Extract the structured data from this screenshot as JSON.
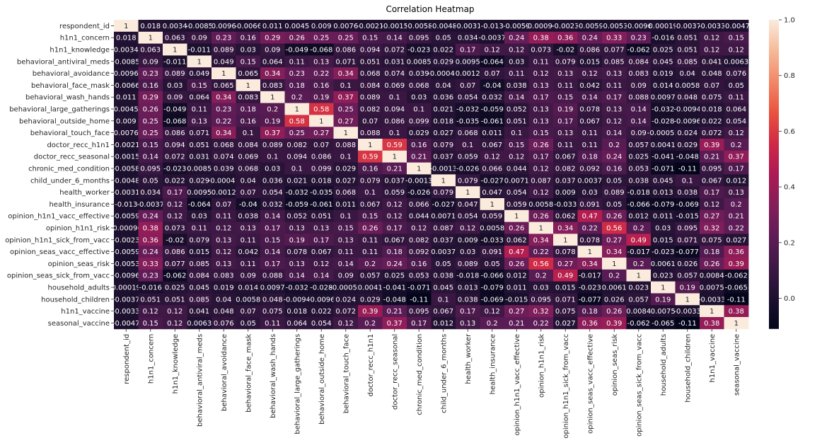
{
  "chart_data": {
    "type": "heatmap",
    "title": "Correlation Heatmap",
    "variables": [
      "respondent_id",
      "h1n1_concern",
      "h1n1_knowledge",
      "behavioral_antiviral_meds",
      "behavioral_avoidance",
      "behavioral_face_mask",
      "behavioral_wash_hands",
      "behavioral_large_gatherings",
      "behavioral_outside_home",
      "behavioral_touch_face",
      "doctor_recc_h1n1",
      "doctor_recc_seasonal",
      "chronic_med_condition",
      "child_under_6_months",
      "health_worker",
      "health_insurance",
      "opinion_h1n1_vacc_effective",
      "opinion_h1n1_risk",
      "opinion_h1n1_sick_from_vacc",
      "opinion_seas_vacc_effective",
      "opinion_seas_risk",
      "opinion_seas_sick_from_vacc",
      "household_adults",
      "household_children",
      "h1n1_vaccine",
      "seasonal_vaccine"
    ],
    "values": [
      [
        "1",
        "0.018",
        "0.0034",
        "-0.0085",
        "0.0096",
        "-0.0066",
        "0.011",
        "0.0045",
        "0.009",
        "0.0076",
        "-0.0021",
        "-0.0015",
        "-0.0058",
        "-0.0048",
        "-0.0031",
        "-0.013",
        "-0.0059",
        "-0.00096",
        "-0.0023",
        "-0.0059",
        "-0.0053",
        "-0.0096",
        "0.00019",
        "-0.0037",
        "-0.0033",
        "-0.0047"
      ],
      [
        "0.018",
        "1",
        "0.063",
        "0.09",
        "0.23",
        "0.16",
        "0.29",
        "0.26",
        "0.25",
        "0.25",
        "0.15",
        "0.14",
        "0.095",
        "0.05",
        "0.034",
        "-0.0037",
        "0.24",
        "0.38",
        "0.36",
        "0.24",
        "0.33",
        "0.23",
        "-0.016",
        "0.051",
        "0.12",
        "0.15"
      ],
      [
        "0.0034",
        "0.063",
        "1",
        "-0.011",
        "0.089",
        "0.03",
        "0.09",
        "-0.049",
        "-0.068",
        "0.086",
        "0.094",
        "0.072",
        "-0.023",
        "0.022",
        "0.17",
        "0.12",
        "0.12",
        "0.073",
        "-0.02",
        "0.086",
        "0.077",
        "-0.062",
        "0.025",
        "0.051",
        "0.12",
        "0.12"
      ],
      [
        "-0.0085",
        "0.09",
        "-0.011",
        "1",
        "0.049",
        "0.15",
        "0.064",
        "0.11",
        "0.13",
        "0.071",
        "0.051",
        "0.031",
        "0.0085",
        "0.029",
        "0.0095",
        "-0.064",
        "0.03",
        "0.11",
        "0.079",
        "0.015",
        "0.085",
        "0.084",
        "0.045",
        "0.085",
        "0.041",
        "0.0063"
      ],
      [
        "0.0096",
        "0.23",
        "0.089",
        "0.049",
        "1",
        "0.065",
        "0.34",
        "0.23",
        "0.22",
        "0.34",
        "0.068",
        "0.074",
        "0.039",
        "-0.00041",
        "0.0012",
        "0.07",
        "0.11",
        "0.12",
        "0.13",
        "0.12",
        "0.13",
        "0.083",
        "0.019",
        "0.04",
        "0.048",
        "0.076"
      ],
      [
        "-0.0066",
        "0.16",
        "0.03",
        "0.15",
        "0.065",
        "1",
        "0.083",
        "0.18",
        "0.16",
        "0.1",
        "0.084",
        "0.069",
        "0.068",
        "0.04",
        "0.07",
        "-0.04",
        "0.038",
        "0.13",
        "0.11",
        "0.042",
        "0.11",
        "0.09",
        "0.014",
        "0.0058",
        "0.07",
        "0.05"
      ],
      [
        "0.011",
        "0.29",
        "0.09",
        "0.064",
        "0.34",
        "0.083",
        "1",
        "0.2",
        "0.19",
        "0.37",
        "0.089",
        "0.1",
        "0.03",
        "0.036",
        "0.054",
        "0.032",
        "0.14",
        "0.17",
        "0.15",
        "0.14",
        "0.17",
        "0.088",
        "0.0097",
        "0.048",
        "0.075",
        "0.11"
      ],
      [
        "0.0045",
        "0.26",
        "-0.049",
        "0.11",
        "0.23",
        "0.18",
        "0.2",
        "1",
        "0.58",
        "0.25",
        "0.082",
        "0.094",
        "0.1",
        "0.021",
        "-0.032",
        "-0.059",
        "0.052",
        "0.13",
        "0.19",
        "0.078",
        "0.13",
        "0.14",
        "-0.032",
        "-0.0094",
        "0.018",
        "0.064"
      ],
      [
        "0.009",
        "0.25",
        "-0.068",
        "0.13",
        "0.22",
        "0.16",
        "0.19",
        "0.58",
        "1",
        "0.27",
        "0.07",
        "0.086",
        "0.099",
        "0.018",
        "-0.035",
        "-0.061",
        "0.051",
        "0.13",
        "0.17",
        "0.067",
        "0.12",
        "0.14",
        "-0.028",
        "-0.0096",
        "0.022",
        "0.054"
      ],
      [
        "0.0076",
        "0.25",
        "0.086",
        "0.071",
        "0.34",
        "0.1",
        "0.37",
        "0.25",
        "0.27",
        "1",
        "0.088",
        "0.1",
        "0.029",
        "0.027",
        "0.068",
        "0.011",
        "0.1",
        "0.15",
        "0.13",
        "0.11",
        "0.14",
        "0.09",
        "-0.00055",
        "0.024",
        "0.072",
        "0.12"
      ],
      [
        "-0.0021",
        "0.15",
        "0.094",
        "0.051",
        "0.068",
        "0.084",
        "0.089",
        "0.082",
        "0.07",
        "0.088",
        "1",
        "0.59",
        "0.16",
        "0.079",
        "0.1",
        "0.067",
        "0.15",
        "0.26",
        "0.11",
        "0.11",
        "0.2",
        "0.057",
        "0.0041",
        "0.029",
        "0.39",
        "0.2"
      ],
      [
        "-0.0015",
        "0.14",
        "0.072",
        "0.031",
        "0.074",
        "0.069",
        "0.1",
        "0.094",
        "0.086",
        "0.1",
        "0.59",
        "1",
        "0.21",
        "0.037",
        "0.059",
        "0.12",
        "0.12",
        "0.17",
        "0.067",
        "0.18",
        "0.24",
        "0.025",
        "-0.041",
        "-0.048",
        "0.21",
        "0.37"
      ],
      [
        "-0.0058",
        "0.095",
        "-0.023",
        "0.0085",
        "0.039",
        "0.068",
        "0.03",
        "0.1",
        "0.099",
        "0.029",
        "0.16",
        "0.21",
        "1",
        "-0.0013",
        "-0.026",
        "0.066",
        "0.044",
        "0.12",
        "0.082",
        "0.092",
        "0.16",
        "0.053",
        "-0.071",
        "-0.11",
        "0.095",
        "0.17"
      ],
      [
        "-0.0048",
        "0.05",
        "0.022",
        "0.029",
        "-0.00041",
        "0.04",
        "0.036",
        "0.021",
        "0.018",
        "0.027",
        "0.079",
        "0.037",
        "-0.0013",
        "1",
        "0.079",
        "-0.027",
        "0.0071",
        "0.087",
        "0.037",
        "0.0037",
        "0.05",
        "0.038",
        "0.045",
        "0.1",
        "0.067",
        "0.012"
      ],
      [
        "-0.0031",
        "0.034",
        "0.17",
        "0.0095",
        "0.0012",
        "0.07",
        "0.054",
        "-0.032",
        "-0.035",
        "0.068",
        "0.1",
        "0.059",
        "-0.026",
        "0.079",
        "1",
        "0.047",
        "0.054",
        "0.12",
        "0.009",
        "0.03",
        "0.089",
        "-0.018",
        "0.013",
        "0.038",
        "0.17",
        "0.13"
      ],
      [
        "-0.013",
        "-0.0037",
        "0.12",
        "-0.064",
        "0.07",
        "-0.04",
        "0.032",
        "-0.059",
        "-0.061",
        "0.011",
        "0.067",
        "0.12",
        "0.066",
        "-0.027",
        "0.047",
        "1",
        "0.059",
        "0.0058",
        "-0.033",
        "0.091",
        "0.05",
        "-0.066",
        "-0.079",
        "-0.069",
        "0.12",
        "0.2"
      ],
      [
        "-0.0059",
        "0.24",
        "0.12",
        "0.03",
        "0.11",
        "0.038",
        "0.14",
        "0.052",
        "0.051",
        "0.1",
        "0.15",
        "0.12",
        "0.044",
        "0.0071",
        "0.054",
        "0.059",
        "1",
        "0.26",
        "0.062",
        "0.47",
        "0.26",
        "0.012",
        "0.011",
        "-0.015",
        "0.27",
        "0.21"
      ],
      [
        "-0.00096",
        "0.38",
        "0.073",
        "0.11",
        "0.12",
        "0.13",
        "0.17",
        "0.13",
        "0.13",
        "0.15",
        "0.26",
        "0.17",
        "0.12",
        "0.087",
        "0.12",
        "0.0058",
        "0.26",
        "1",
        "0.34",
        "0.22",
        "0.56",
        "0.2",
        "0.03",
        "0.095",
        "0.32",
        "0.22"
      ],
      [
        "-0.0023",
        "0.36",
        "-0.02",
        "0.079",
        "0.13",
        "0.11",
        "0.15",
        "0.19",
        "0.17",
        "0.13",
        "0.11",
        "0.067",
        "0.082",
        "0.037",
        "0.009",
        "-0.033",
        "0.062",
        "0.34",
        "1",
        "0.078",
        "0.27",
        "0.49",
        "0.015",
        "0.071",
        "0.075",
        "0.027"
      ],
      [
        "-0.0059",
        "0.24",
        "0.086",
        "0.015",
        "0.12",
        "0.042",
        "0.14",
        "0.078",
        "0.067",
        "0.11",
        "0.11",
        "0.18",
        "0.092",
        "0.0037",
        "0.03",
        "0.091",
        "0.47",
        "0.22",
        "0.078",
        "1",
        "0.34",
        "-0.017",
        "-0.023",
        "-0.077",
        "0.18",
        "0.36"
      ],
      [
        "-0.0053",
        "0.33",
        "0.077",
        "0.085",
        "0.13",
        "0.11",
        "0.17",
        "0.13",
        "0.12",
        "0.14",
        "0.2",
        "0.24",
        "0.16",
        "0.05",
        "0.089",
        "0.05",
        "0.26",
        "0.56",
        "0.27",
        "0.34",
        "1",
        "0.2",
        "0.0061",
        "0.026",
        "0.26",
        "0.39"
      ],
      [
        "-0.0096",
        "0.23",
        "-0.062",
        "0.084",
        "0.083",
        "0.09",
        "0.088",
        "0.14",
        "0.14",
        "0.09",
        "0.057",
        "0.025",
        "0.053",
        "0.038",
        "-0.018",
        "-0.066",
        "0.012",
        "0.2",
        "0.49",
        "-0.017",
        "0.2",
        "1",
        "0.023",
        "0.057",
        "0.0084",
        "-0.062"
      ],
      [
        "0.00019",
        "-0.016",
        "0.025",
        "0.045",
        "0.019",
        "0.014",
        "0.0097",
        "-0.032",
        "-0.028",
        "-0.00055",
        "0.0041",
        "-0.041",
        "-0.071",
        "0.045",
        "0.013",
        "-0.079",
        "0.011",
        "0.03",
        "0.015",
        "-0.023",
        "0.0061",
        "0.023",
        "1",
        "0.19",
        "0.0075",
        "-0.065"
      ],
      [
        "-0.0037",
        "0.051",
        "0.051",
        "0.085",
        "0.04",
        "0.0058",
        "0.048",
        "-0.0094",
        "-0.0096",
        "0.024",
        "0.029",
        "-0.048",
        "-0.11",
        "0.1",
        "0.038",
        "-0.069",
        "-0.015",
        "0.095",
        "0.071",
        "-0.077",
        "0.026",
        "0.057",
        "0.19",
        "1",
        "-0.0033",
        "-0.11"
      ],
      [
        "-0.0033",
        "0.12",
        "0.12",
        "0.041",
        "0.048",
        "0.07",
        "0.075",
        "0.018",
        "0.022",
        "0.072",
        "0.39",
        "0.21",
        "0.095",
        "0.067",
        "0.17",
        "0.12",
        "0.27",
        "0.32",
        "0.075",
        "0.18",
        "0.26",
        "0.0084",
        "0.0075",
        "-0.0033",
        "1",
        "0.38"
      ],
      [
        "-0.0047",
        "0.15",
        "0.12",
        "0.0063",
        "0.076",
        "0.05",
        "0.11",
        "0.064",
        "0.054",
        "0.12",
        "0.2",
        "0.37",
        "0.17",
        "0.012",
        "0.13",
        "0.2",
        "0.21",
        "0.22",
        "0.027",
        "0.36",
        "0.39",
        "-0.062",
        "-0.065",
        "-0.11",
        "0.38",
        "1"
      ]
    ],
    "colorbar": {
      "min": -0.11,
      "max": 1.0,
      "ticks": [
        "1.0",
        "0.8",
        "0.6",
        "0.4",
        "0.2",
        "0.0"
      ]
    },
    "colormap": "rocket"
  }
}
